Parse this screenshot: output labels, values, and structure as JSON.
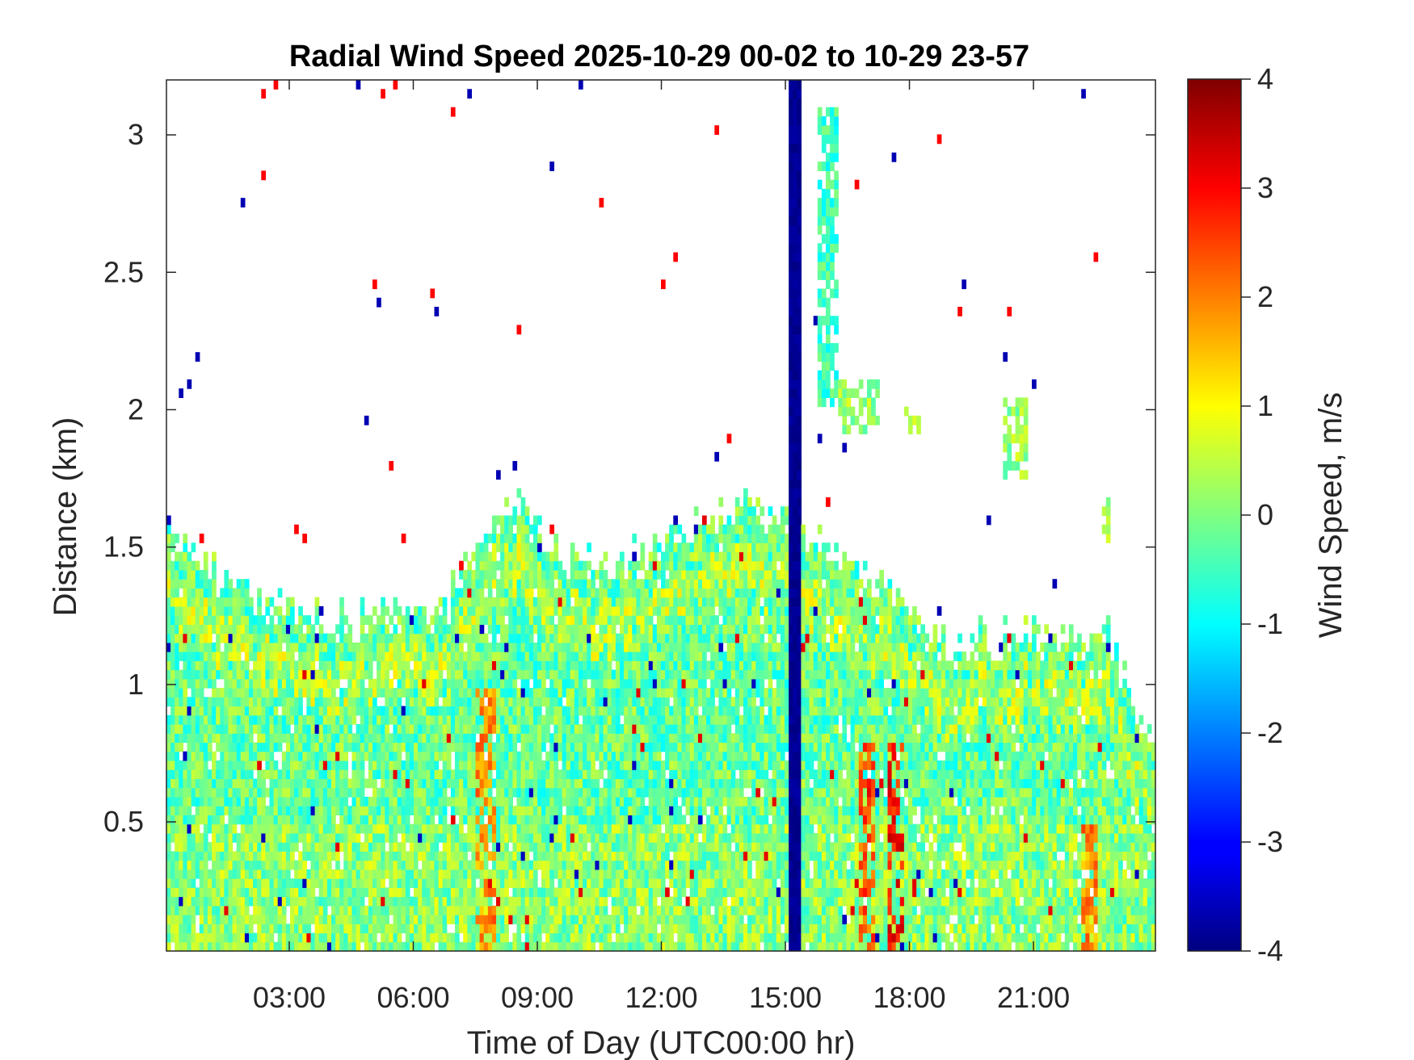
{
  "chart_data": {
    "type": "heatmap",
    "title": "Radial Wind Speed 2025-10-29 00-02 to 10-29 23-57",
    "xlabel": "Time of Day (UTC00:00 hr)",
    "ylabel": "Distance (km)",
    "colorbar_label": "Wind Speed, m/s",
    "colormap": "jet",
    "xlim": [
      0.03,
      23.95
    ],
    "ylim": [
      0.03,
      3.2
    ],
    "clim": [
      -4,
      4
    ],
    "x_ticks": [
      3,
      6,
      9,
      12,
      15,
      18,
      21
    ],
    "x_tick_labels": [
      "03:00",
      "06:00",
      "09:00",
      "12:00",
      "15:00",
      "18:00",
      "21:00"
    ],
    "y_ticks": [
      0.5,
      1,
      1.5,
      2,
      2.5,
      3
    ],
    "y_tick_labels": [
      "0.5",
      "1",
      "1.5",
      "2",
      "2.5",
      "3"
    ],
    "colorbar_ticks": [
      -4,
      -3,
      -2,
      -1,
      0,
      1,
      2,
      3,
      4
    ],
    "colorbar_tick_labels": [
      "-4",
      "-3",
      "-2",
      "-1",
      "0",
      "1",
      "2",
      "3",
      "4"
    ],
    "signal_top_profile": {
      "time_hr": [
        0.03,
        1.0,
        2.0,
        3.0,
        4.0,
        5.0,
        6.0,
        6.8,
        7.5,
        8.5,
        9.5,
        10.5,
        11.5,
        12.5,
        13.5,
        14.5,
        15.3,
        16.0,
        17.0,
        18.0,
        19.0,
        20.0,
        21.0,
        22.0,
        22.8,
        23.95
      ],
      "top_km": [
        1.6,
        1.45,
        1.35,
        1.3,
        1.25,
        1.3,
        1.3,
        1.3,
        1.55,
        1.7,
        1.5,
        1.45,
        1.5,
        1.6,
        1.65,
        1.65,
        1.6,
        1.5,
        1.4,
        1.3,
        1.15,
        1.2,
        1.2,
        1.2,
        1.2,
        0.8
      ]
    },
    "dark_column": {
      "time_hr": [
        15.1,
        15.35
      ],
      "top_km": 3.2,
      "value_ms": -4
    },
    "enhanced_positive_bands": [
      {
        "time_hr": [
          16.8,
          17.2
        ],
        "top_km": 0.8,
        "value_ms": 3
      },
      {
        "time_hr": [
          17.5,
          17.9
        ],
        "top_km": 0.8,
        "value_ms": 3.5
      },
      {
        "time_hr": [
          22.2,
          22.6
        ],
        "top_km": 0.5,
        "value_ms": 2.5
      },
      {
        "time_hr": [
          7.5,
          8.0
        ],
        "top_km": 1.0,
        "value_ms": 2.5
      }
    ],
    "upper_patches": [
      {
        "time_hr": [
          15.8,
          16.3
        ],
        "range_km": [
          2.0,
          3.1
        ],
        "value_ms": -0.5
      },
      {
        "time_hr": [
          16.3,
          17.3
        ],
        "range_km": [
          1.9,
          2.1
        ],
        "value_ms": 0.2
      },
      {
        "time_hr": [
          20.3,
          20.9
        ],
        "range_km": [
          1.75,
          2.05
        ],
        "value_ms": 0.2
      },
      {
        "time_hr": [
          22.7,
          22.85
        ],
        "range_km": [
          1.5,
          1.7
        ],
        "value_ms": 0.3
      },
      {
        "time_hr": [
          17.9,
          18.3
        ],
        "range_km": [
          1.9,
          2.0
        ],
        "value_ms": 0.3
      }
    ]
  }
}
